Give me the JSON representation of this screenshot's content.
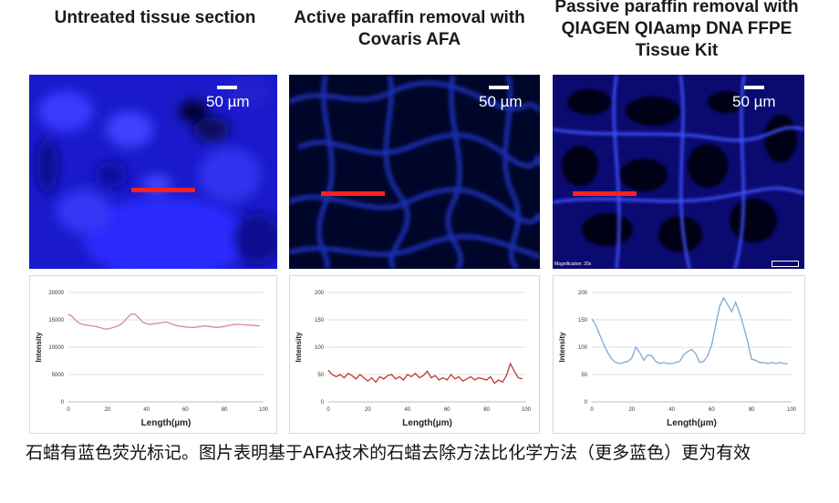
{
  "titles": [
    "Untreated tissue section",
    "Active paraffin removal with Covaris AFA",
    "Passive paraffin removal with QIAGEN QIAamp DNA FFPE Tissue Kit"
  ],
  "panels": {
    "scale_label": "50 µm",
    "micro_text": "Magnification: 20x"
  },
  "colors": {
    "tissue_blue": "#1010ff",
    "dark_blue": "#000833",
    "line_red": "#ff2020",
    "series_1": "#d98a8a",
    "series_2": "#c0392b",
    "series_3": "#7fa8d0"
  },
  "chart_data": [
    {
      "type": "line",
      "title": "",
      "xlabel": "Length(µm)",
      "ylabel": "Intensity",
      "xlim": [
        0,
        100
      ],
      "ylim": [
        0,
        20000
      ],
      "xticks": [
        0,
        20,
        40,
        60,
        80,
        100
      ],
      "yticks": [
        0,
        5000,
        10000,
        15000,
        20000
      ],
      "grid": true,
      "x": [
        0,
        2,
        4,
        6,
        8,
        10,
        12,
        14,
        16,
        18,
        20,
        22,
        24,
        26,
        28,
        30,
        32,
        34,
        36,
        38,
        40,
        42,
        44,
        46,
        48,
        50,
        52,
        54,
        56,
        58,
        60,
        62,
        64,
        66,
        68,
        70,
        72,
        74,
        76,
        78,
        80,
        82,
        84,
        86,
        88,
        90,
        92,
        94,
        96,
        98
      ],
      "y": [
        16000,
        15600,
        14800,
        14300,
        14100,
        14000,
        13900,
        13800,
        13600,
        13400,
        13300,
        13500,
        13700,
        14000,
        14500,
        15300,
        16000,
        16100,
        15400,
        14600,
        14300,
        14200,
        14300,
        14400,
        14500,
        14600,
        14400,
        14100,
        13900,
        13800,
        13700,
        13650,
        13600,
        13700,
        13800,
        13900,
        13800,
        13700,
        13600,
        13700,
        13800,
        13950,
        14100,
        14200,
        14150,
        14100,
        14050,
        14000,
        13950,
        13900
      ]
    },
    {
      "type": "line",
      "title": "",
      "xlabel": "Length(µm)",
      "ylabel": "Intensity",
      "xlim": [
        0,
        100
      ],
      "ylim": [
        0,
        200
      ],
      "xticks": [
        0,
        20,
        40,
        60,
        80,
        100
      ],
      "yticks": [
        0,
        50,
        100,
        150,
        200
      ],
      "grid": true,
      "x": [
        0,
        2,
        4,
        6,
        8,
        10,
        12,
        14,
        16,
        18,
        20,
        22,
        24,
        26,
        28,
        30,
        32,
        34,
        36,
        38,
        40,
        42,
        44,
        46,
        48,
        50,
        52,
        54,
        56,
        58,
        60,
        62,
        64,
        66,
        68,
        70,
        72,
        74,
        76,
        78,
        80,
        82,
        84,
        86,
        88,
        90,
        92,
        94,
        96,
        98
      ],
      "y": [
        58,
        50,
        46,
        50,
        44,
        52,
        48,
        42,
        50,
        44,
        38,
        44,
        36,
        46,
        42,
        48,
        50,
        42,
        46,
        40,
        50,
        46,
        52,
        44,
        48,
        56,
        44,
        48,
        40,
        44,
        40,
        50,
        42,
        46,
        38,
        42,
        46,
        40,
        44,
        42,
        40,
        46,
        34,
        40,
        36,
        48,
        70,
        56,
        44,
        42
      ]
    },
    {
      "type": "line",
      "title": "",
      "xlabel": "Length(µm)",
      "ylabel": "Intensity",
      "xlim": [
        0,
        100
      ],
      "ylim": [
        0,
        200
      ],
      "xticks": [
        0,
        20,
        40,
        60,
        80,
        100
      ],
      "yticks": [
        0,
        50,
        100,
        150,
        200
      ],
      "grid": true,
      "x": [
        0,
        2,
        4,
        6,
        8,
        10,
        12,
        14,
        16,
        18,
        20,
        22,
        24,
        26,
        28,
        30,
        32,
        34,
        36,
        38,
        40,
        42,
        44,
        46,
        48,
        50,
        52,
        54,
        56,
        58,
        60,
        62,
        64,
        66,
        68,
        70,
        72,
        74,
        76,
        78,
        80,
        82,
        84,
        86,
        88,
        90,
        92,
        94,
        96,
        98
      ],
      "y": [
        152,
        140,
        122,
        105,
        90,
        78,
        72,
        70,
        72,
        74,
        80,
        100,
        90,
        76,
        86,
        84,
        74,
        70,
        72,
        70,
        70,
        72,
        74,
        86,
        92,
        96,
        88,
        72,
        74,
        84,
        104,
        140,
        175,
        190,
        178,
        165,
        182,
        162,
        138,
        110,
        78,
        76,
        72,
        72,
        70,
        72,
        70,
        72,
        70,
        70
      ]
    }
  ],
  "caption": "石蜡有蓝色荧光标记。图片表明基于AFA技术的石蜡去除方法比化学方法（更多蓝色）更为有效"
}
